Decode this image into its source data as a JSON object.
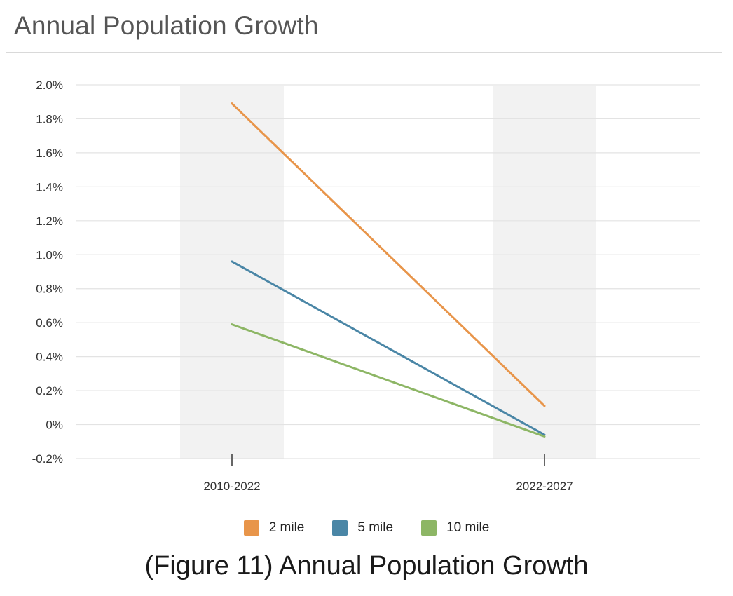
{
  "header": {
    "title": "Annual Population Growth"
  },
  "caption": "(Figure 11) Annual Population Growth",
  "chart_data": {
    "type": "line",
    "categories": [
      "2010-2022",
      "2022-2027"
    ],
    "y_tick_labels": [
      "-0.2%",
      "0%",
      "0.2%",
      "0.4%",
      "0.6%",
      "0.8%",
      "1.0%",
      "1.2%",
      "1.4%",
      "1.6%",
      "1.8%",
      "2.0%"
    ],
    "y_ticks": [
      -0.2,
      0,
      0.2,
      0.4,
      0.6,
      0.8,
      1.0,
      1.2,
      1.4,
      1.6,
      1.8,
      2.0
    ],
    "ylim": [
      -0.2,
      2.0
    ],
    "grid": true,
    "legend_position": "bottom",
    "series": [
      {
        "name": "2 mile",
        "values": [
          1.89,
          0.11
        ],
        "color": "#e8954a"
      },
      {
        "name": "5 mile",
        "values": [
          0.96,
          -0.06
        ],
        "color": "#4a86a6"
      },
      {
        "name": "10 mile",
        "values": [
          0.59,
          -0.07
        ],
        "color": "#8db665"
      }
    ]
  }
}
